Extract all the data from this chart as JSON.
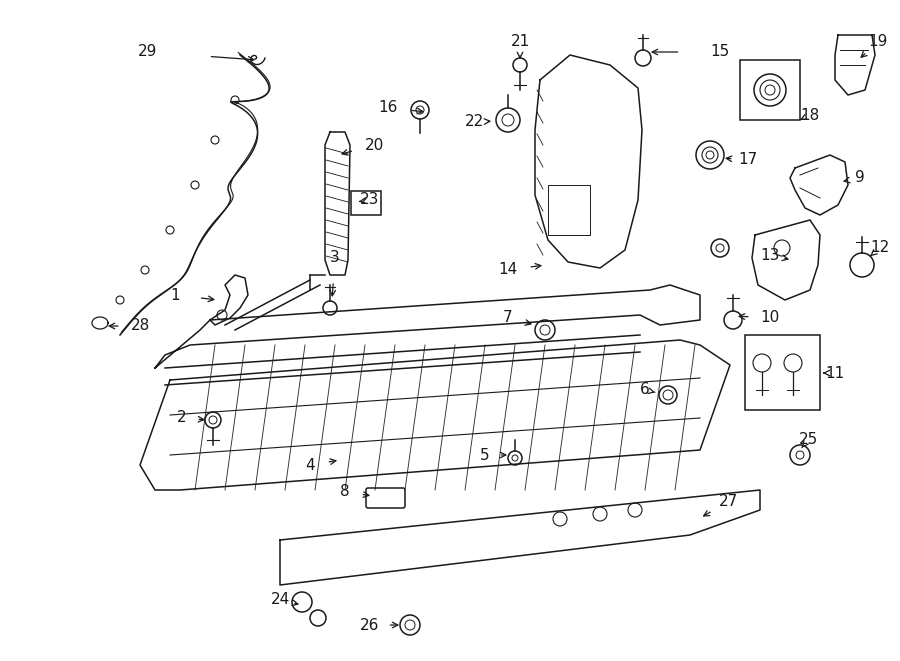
{
  "bg": "#ffffff",
  "fw": 9.0,
  "fh": 6.61,
  "dpi": 100,
  "lc": "#1a1a1a",
  "lw": 1.1,
  "fs": 11
}
